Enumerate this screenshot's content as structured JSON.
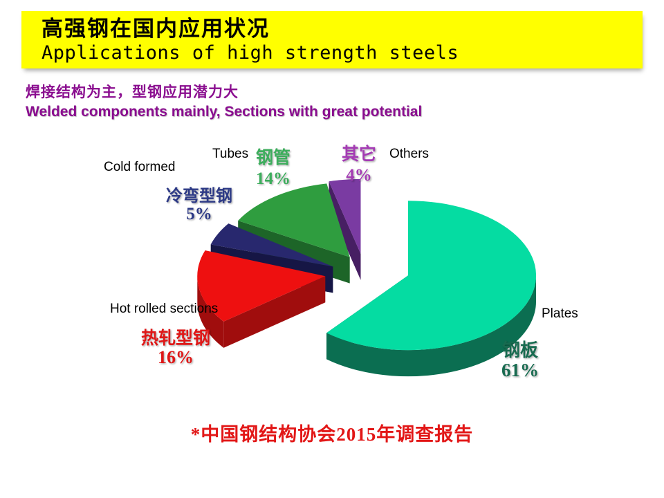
{
  "slide": {
    "background": "#FFFFFF"
  },
  "header": {
    "title_zh": "高强钢在国内应用状况",
    "title_en": "Applications of high strength steels",
    "banner_color": "#FFFF00",
    "text_color": "#000000"
  },
  "subtitle": {
    "zh": "焊接结构为主，型钢应用潜力大",
    "en": "Welded components mainly, Sections with great potential",
    "color": "#8A0D8F"
  },
  "chart_data": {
    "type": "pie",
    "style": "3d-exploded",
    "unit": "percent",
    "start_angle_deg": 90,
    "direction": "clockwise",
    "slices": [
      {
        "label_en": "Plates",
        "label_zh": "钢板",
        "value": 61,
        "pct_label": "61%",
        "top_color": "#05DCA2",
        "side_color": "#0B6E51",
        "text_color": "#186B50"
      },
      {
        "label_en": "Hot rolled sections",
        "label_zh": "热轧型钢",
        "value": 16,
        "pct_label": "16%",
        "top_color": "#EE1010",
        "side_color": "#A00D0D",
        "text_color": "#DF1717"
      },
      {
        "label_en": "Cold formed",
        "label_zh": "冷弯型钢",
        "value": 5,
        "pct_label": "5%",
        "top_color": "#28286E",
        "side_color": "#161645",
        "text_color": "#2D3A86"
      },
      {
        "label_en": "Tubes",
        "label_zh": "钢管",
        "value": 14,
        "pct_label": "14%",
        "top_color": "#2F9D3F",
        "side_color": "#1D6528",
        "text_color": "#3CAD5C"
      },
      {
        "label_en": "Others",
        "label_zh": "其它",
        "value": 4,
        "pct_label": "4%",
        "top_color": "#7A3BA2",
        "side_color": "#471F63",
        "text_color": "#A43BB4"
      }
    ]
  },
  "footnote": {
    "text": "*中国钢结构协会2015年调查报告",
    "color": "#E21717"
  }
}
